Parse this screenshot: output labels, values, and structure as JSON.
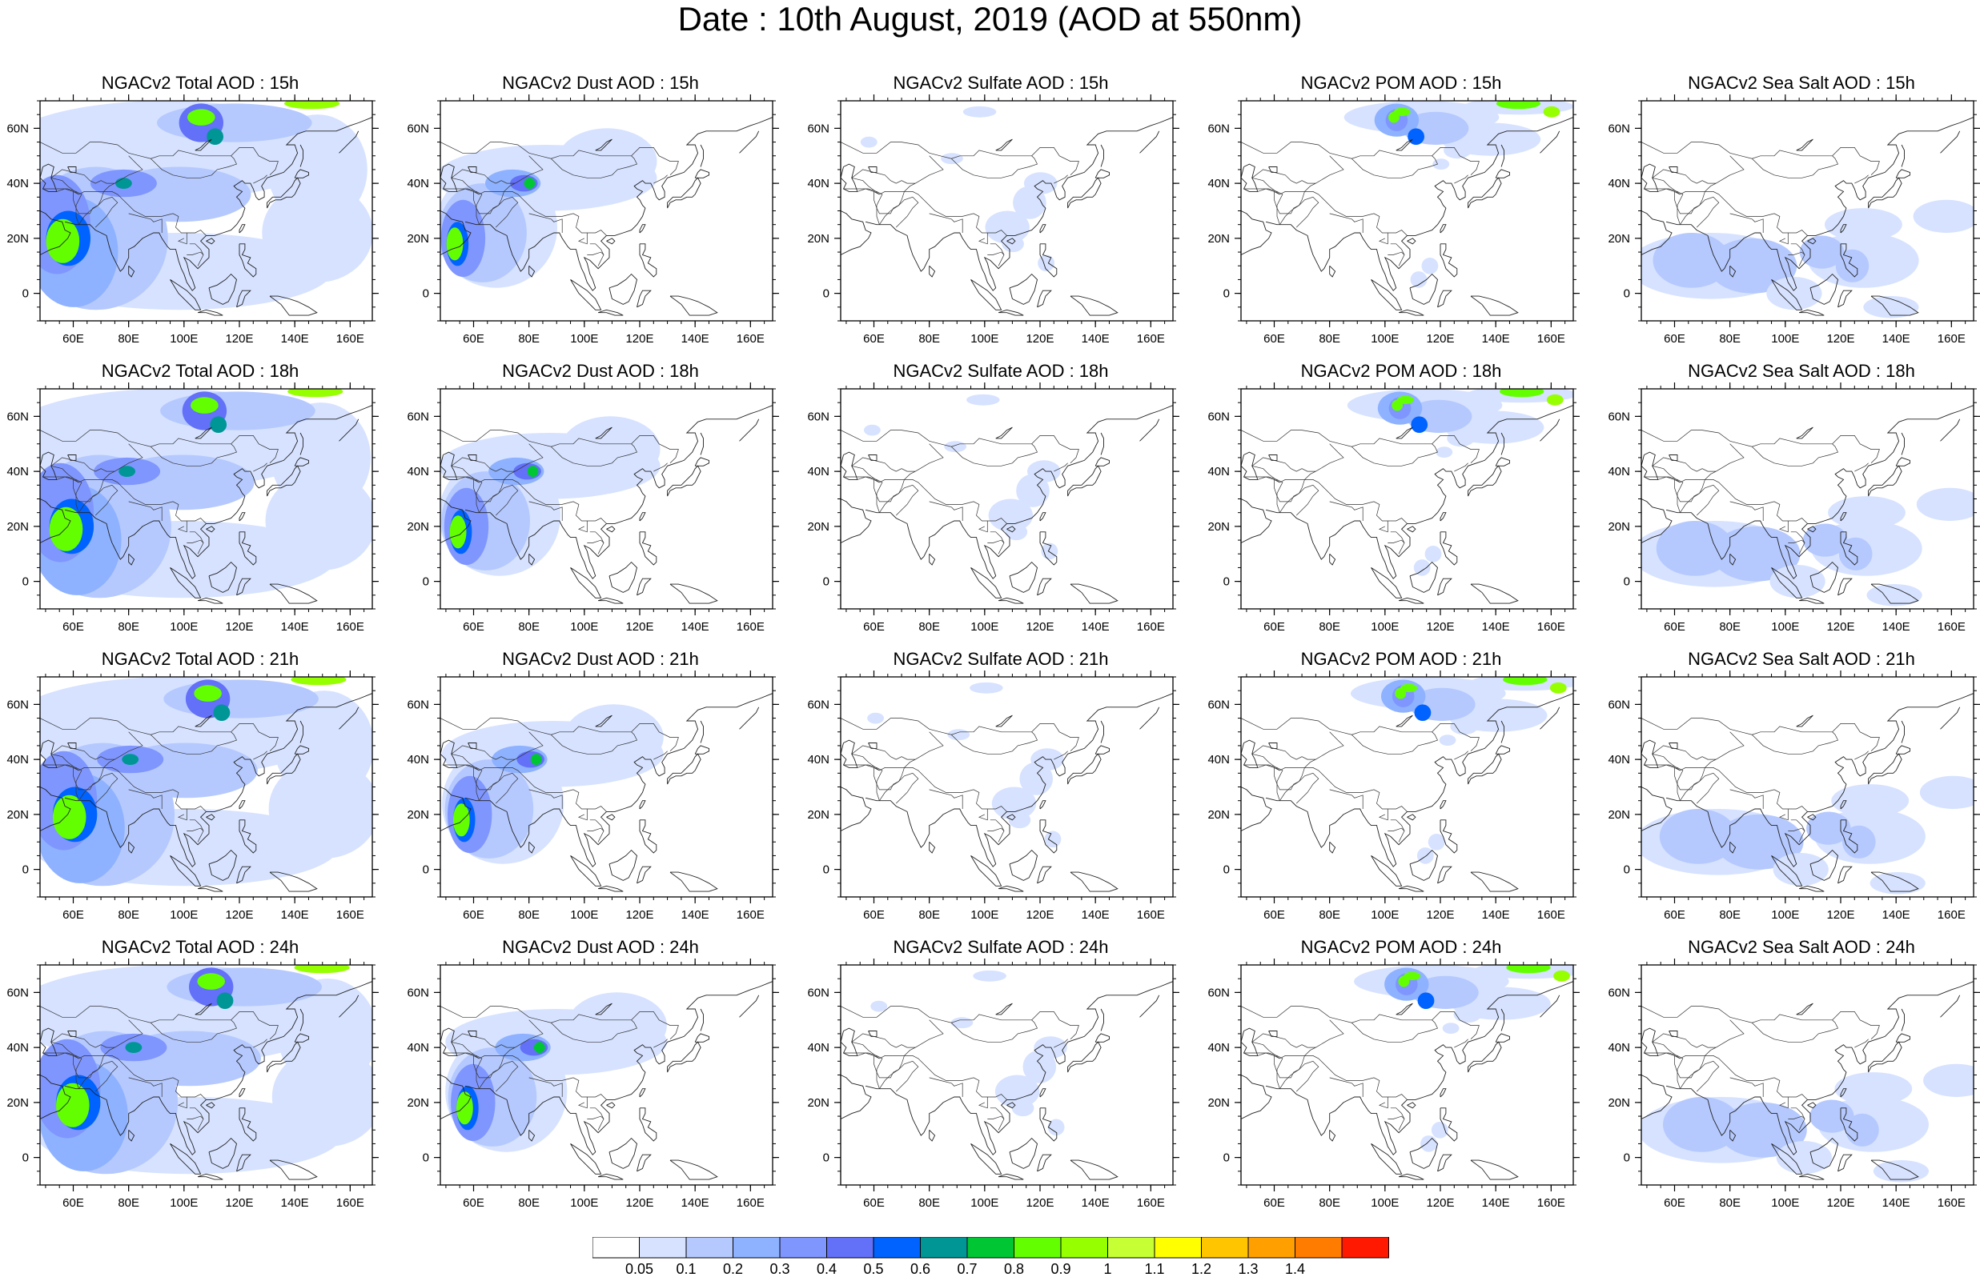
{
  "title": "Date : 10th August, 2019 (AOD at 550nm)",
  "rows": [
    "15h",
    "18h",
    "21h",
    "24h"
  ],
  "species": [
    {
      "key": "total",
      "titles": [
        "NGACv2 Total AOD : 15h",
        "NGACv2 Total AOD : 18h",
        "NGACv2 Total AOD : 21h",
        "NGACv2 Total AOD : 24h"
      ]
    },
    {
      "key": "dust",
      "titles": [
        "NGACv2 Dust AOD : 15h",
        "NGACv2 Dust AOD : 18h",
        "NGACv2 Dust AOD : 21h",
        "NGACv2 Dust AOD : 24h"
      ]
    },
    {
      "key": "sulfate",
      "titles": [
        "NGACv2 Sulfate AOD : 15h",
        "NGACv2 Sulfate AOD : 18h",
        "NGACv2 Sulfate AOD : 21h",
        "NGACv2 Sulfate AOD : 24h"
      ]
    },
    {
      "key": "pom",
      "titles": [
        "NGACv2 POM AOD : 15h",
        "NGACv2 POM AOD : 18h",
        "NGACv2 POM AOD : 21h",
        "NGACv2 POM AOD : 24h"
      ]
    },
    {
      "key": "seasalt",
      "titles": [
        "NGACv2 Sea Salt AOD : 15h",
        "NGACv2 Sea Salt AOD : 18h",
        "NGACv2 Sea Salt AOD : 21h",
        "NGACv2 Sea Salt  AOD : 24h"
      ]
    }
  ],
  "map": {
    "lon_range": [
      48,
      168
    ],
    "lat_range": [
      -10,
      70
    ],
    "lon_ticks": [
      "60E",
      "80E",
      "100E",
      "120E",
      "140E",
      "160E"
    ],
    "lon_tick_values": [
      60,
      80,
      100,
      120,
      140,
      160
    ],
    "lat_ticks": [
      "60N",
      "40N",
      "20N",
      "0"
    ],
    "lat_tick_values": [
      60,
      40,
      20,
      0
    ]
  },
  "colorbar": {
    "labels": [
      "0.05",
      "0.1",
      "0.2",
      "0.3",
      "0.4",
      "0.5",
      "0.6",
      "0.7",
      "0.8",
      "0.9",
      "1",
      "1.1",
      "1.2",
      "1.3",
      "1.4"
    ],
    "colors": [
      "#ffffff",
      "#d6e2ff",
      "#b5c9ff",
      "#8eb2ff",
      "#7f96ff",
      "#6370f8",
      "#0063ff",
      "#009696",
      "#00c633",
      "#63ff00",
      "#96ff00",
      "#c6ff33",
      "#ffff00",
      "#ffc600",
      "#ffa000",
      "#ff7c00",
      "#ff1900"
    ]
  }
}
